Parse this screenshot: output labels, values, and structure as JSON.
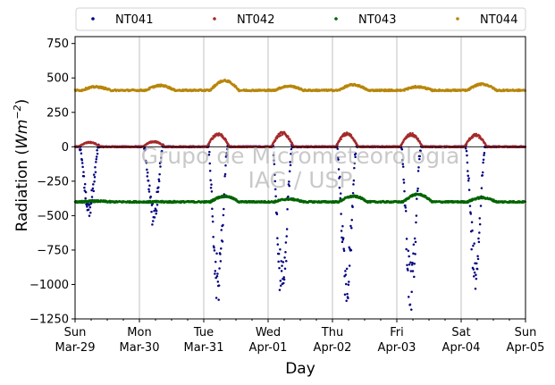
{
  "chart_data": {
    "type": "scatter",
    "xlabel": "Day",
    "ylabel": "Radiation",
    "ylabel_unit_base": "Wm",
    "ylabel_unit_exp": "−2",
    "ylim": [
      -1250,
      800
    ],
    "yticks": [
      -1250,
      -1000,
      -750,
      -500,
      -250,
      0,
      250,
      500,
      750
    ],
    "ytick_labels": [
      "−1250",
      "−1000",
      "−750",
      "−500",
      "−250",
      "0",
      "250",
      "500",
      "750"
    ],
    "x_range_days": [
      0,
      7
    ],
    "xticks": [
      {
        "day": "Sun",
        "date": "Mar-29"
      },
      {
        "day": "Mon",
        "date": "Mar-30"
      },
      {
        "day": "Tue",
        "date": "Mar-31"
      },
      {
        "day": "Wed",
        "date": "Apr-01"
      },
      {
        "day": "Thu",
        "date": "Apr-02"
      },
      {
        "day": "Fri",
        "date": "Apr-03"
      },
      {
        "day": "Sat",
        "date": "Apr-04"
      },
      {
        "day": "Sun",
        "date": "Apr-05"
      }
    ],
    "grid": "vertical",
    "legend_position": "top",
    "watermark_lines": [
      "Grupo de Micrometeorologia",
      "IAG / USP"
    ],
    "series": [
      {
        "name": "NT041",
        "color": "#00007f",
        "baseline": 0,
        "daily_min": [
          -480,
          -530,
          -1050,
          -1100,
          -1080,
          -1110,
          -920
        ]
      },
      {
        "name": "NT042",
        "color": "#a52a2a",
        "baseline": 0,
        "daily_peak": [
          35,
          40,
          100,
          105,
          100,
          95,
          90
        ]
      },
      {
        "name": "NT043",
        "color": "#006400",
        "baseline": -400,
        "daily_peak": [
          -395,
          -400,
          -360,
          -380,
          -360,
          -345,
          -370
        ]
      },
      {
        "name": "NT044",
        "color": "#b8860b",
        "baseline": 410,
        "daily_peak": [
          435,
          445,
          480,
          440,
          450,
          435,
          455
        ]
      }
    ]
  }
}
